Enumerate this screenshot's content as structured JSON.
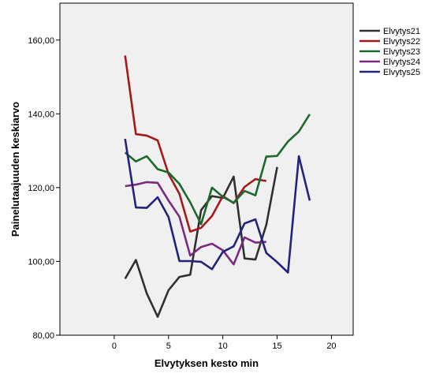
{
  "chart_data": {
    "type": "line",
    "xlabel": "Elvytyksen kesto min",
    "ylabel": "Painelutaajuuden keskiarvo",
    "xlim": [
      -5,
      22
    ],
    "ylim": [
      80,
      170
    ],
    "x_ticks": [
      0,
      5,
      10,
      15,
      20
    ],
    "y_ticks": [
      80,
      100,
      120,
      140,
      160
    ],
    "x_tick_labels": [
      "0",
      "5",
      "10",
      "15",
      "20"
    ],
    "y_tick_labels": [
      "80,00",
      "100,00",
      "120,00",
      "140,00",
      "160,00"
    ],
    "grid": false,
    "legend_position": "right",
    "plot_background": "#f0f0f0",
    "series": [
      {
        "name": "Elvytys21",
        "color": "#303030",
        "points": [
          [
            1,
            95.3
          ],
          [
            2,
            100.4
          ],
          [
            3,
            91.3
          ],
          [
            4,
            85.0
          ],
          [
            5,
            92.2
          ],
          [
            6,
            95.8
          ],
          [
            7,
            96.4
          ],
          [
            8,
            113.9
          ],
          [
            9,
            117.7
          ],
          [
            10,
            117.2
          ],
          [
            11,
            123.0
          ],
          [
            12,
            100.8
          ],
          [
            13,
            100.5
          ],
          [
            14,
            109.9
          ],
          [
            15,
            125.6
          ]
        ]
      },
      {
        "name": "Elvytys22",
        "color": "#a31a1a",
        "points": [
          [
            1,
            155.8
          ],
          [
            2,
            134.5
          ],
          [
            3,
            134.1
          ],
          [
            4,
            132.8
          ],
          [
            5,
            123.7
          ],
          [
            6,
            118.3
          ],
          [
            7,
            108.1
          ],
          [
            8,
            109.1
          ],
          [
            9,
            112.3
          ],
          [
            10,
            117.7
          ],
          [
            11,
            115.8
          ],
          [
            12,
            120.2
          ],
          [
            13,
            122.3
          ],
          [
            14,
            121.8
          ]
        ]
      },
      {
        "name": "Elvytys23",
        "color": "#1b6a2a",
        "points": [
          [
            1,
            129.5
          ],
          [
            2,
            127.1
          ],
          [
            3,
            128.5
          ],
          [
            4,
            125.0
          ],
          [
            5,
            124.1
          ],
          [
            6,
            121.0
          ],
          [
            7,
            116.0
          ],
          [
            8,
            110.1
          ],
          [
            9,
            120.0
          ],
          [
            10,
            117.5
          ],
          [
            11,
            115.9
          ],
          [
            12,
            119.1
          ],
          [
            13,
            117.9
          ],
          [
            14,
            128.4
          ],
          [
            15,
            128.6
          ],
          [
            16,
            132.5
          ],
          [
            17,
            135.2
          ],
          [
            18,
            139.9
          ]
        ]
      },
      {
        "name": "Elvytys24",
        "color": "#7a2a7f",
        "points": [
          [
            1,
            120.4
          ],
          [
            2,
            120.8
          ],
          [
            3,
            121.5
          ],
          [
            4,
            121.3
          ],
          [
            5,
            116.5
          ],
          [
            6,
            112.1
          ],
          [
            7,
            101.6
          ],
          [
            8,
            103.9
          ],
          [
            9,
            104.8
          ],
          [
            10,
            103.0
          ],
          [
            11,
            99.2
          ],
          [
            12,
            106.5
          ],
          [
            13,
            105.1
          ],
          [
            14,
            105.3
          ]
        ]
      },
      {
        "name": "Elvytys25",
        "color": "#23237a",
        "points": [
          [
            1,
            133.2
          ],
          [
            2,
            114.6
          ],
          [
            3,
            114.5
          ],
          [
            4,
            117.4
          ],
          [
            5,
            112.0
          ],
          [
            6,
            100.1
          ],
          [
            7,
            100.1
          ],
          [
            8,
            99.9
          ],
          [
            9,
            97.9
          ],
          [
            10,
            102.6
          ],
          [
            11,
            104.1
          ],
          [
            12,
            110.3
          ],
          [
            13,
            111.4
          ],
          [
            14,
            102.3
          ],
          [
            15,
            99.8
          ],
          [
            16,
            97.0
          ],
          [
            17,
            128.5
          ],
          [
            18,
            116.5
          ]
        ]
      }
    ]
  }
}
